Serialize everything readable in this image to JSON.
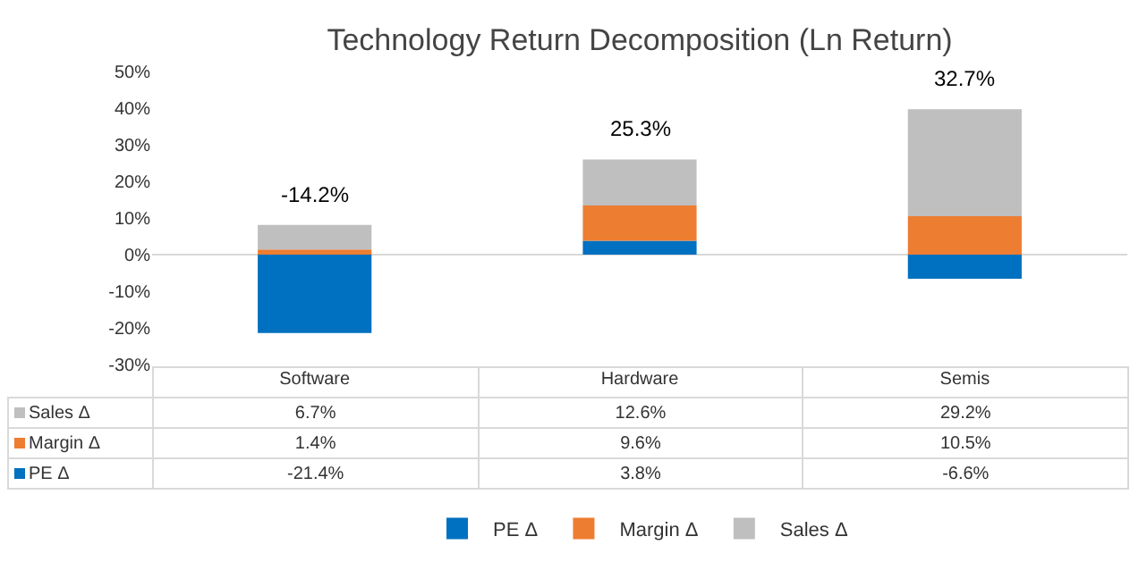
{
  "chart_data": {
    "type": "bar",
    "title": "Technology Return Decomposition (Ln Return)",
    "categories": [
      "Software",
      "Hardware",
      "Semis"
    ],
    "stacked": true,
    "series": [
      {
        "name": "PE Δ",
        "color": "#0070c0",
        "values": [
          -21.4,
          3.8,
          -6.6
        ],
        "value_labels": [
          "-21.4%",
          "3.8%",
          "-6.6%"
        ]
      },
      {
        "name": "Margin Δ",
        "color": "#ed7d31",
        "values": [
          1.4,
          9.6,
          10.5
        ],
        "value_labels": [
          "1.4%",
          "9.6%",
          "10.5%"
        ]
      },
      {
        "name": "Sales Δ",
        "color": "#bfbfbf",
        "values": [
          6.7,
          12.6,
          29.2
        ],
        "value_labels": [
          "6.7%",
          "12.6%",
          "29.2%"
        ]
      }
    ],
    "annotations": [
      {
        "text": "-14.2%",
        "x": "Software",
        "y": 8.1
      },
      {
        "text": "25.3%",
        "x": "Hardware",
        "y": 26
      },
      {
        "text": "32.7%",
        "x": "Semis",
        "y": 39.7
      }
    ],
    "ylim": [
      -30,
      50
    ],
    "yticks": [
      {
        "value": -30,
        "label": "-30%"
      },
      {
        "value": -20,
        "label": "-20%"
      },
      {
        "value": -10,
        "label": "-10%"
      },
      {
        "value": 0,
        "label": "0%"
      },
      {
        "value": 10,
        "label": "10%"
      },
      {
        "value": 20,
        "label": "20%"
      },
      {
        "value": 30,
        "label": "30%"
      },
      {
        "value": 40,
        "label": "40%"
      },
      {
        "value": 50,
        "label": "50%"
      }
    ],
    "legend": "bottom"
  }
}
